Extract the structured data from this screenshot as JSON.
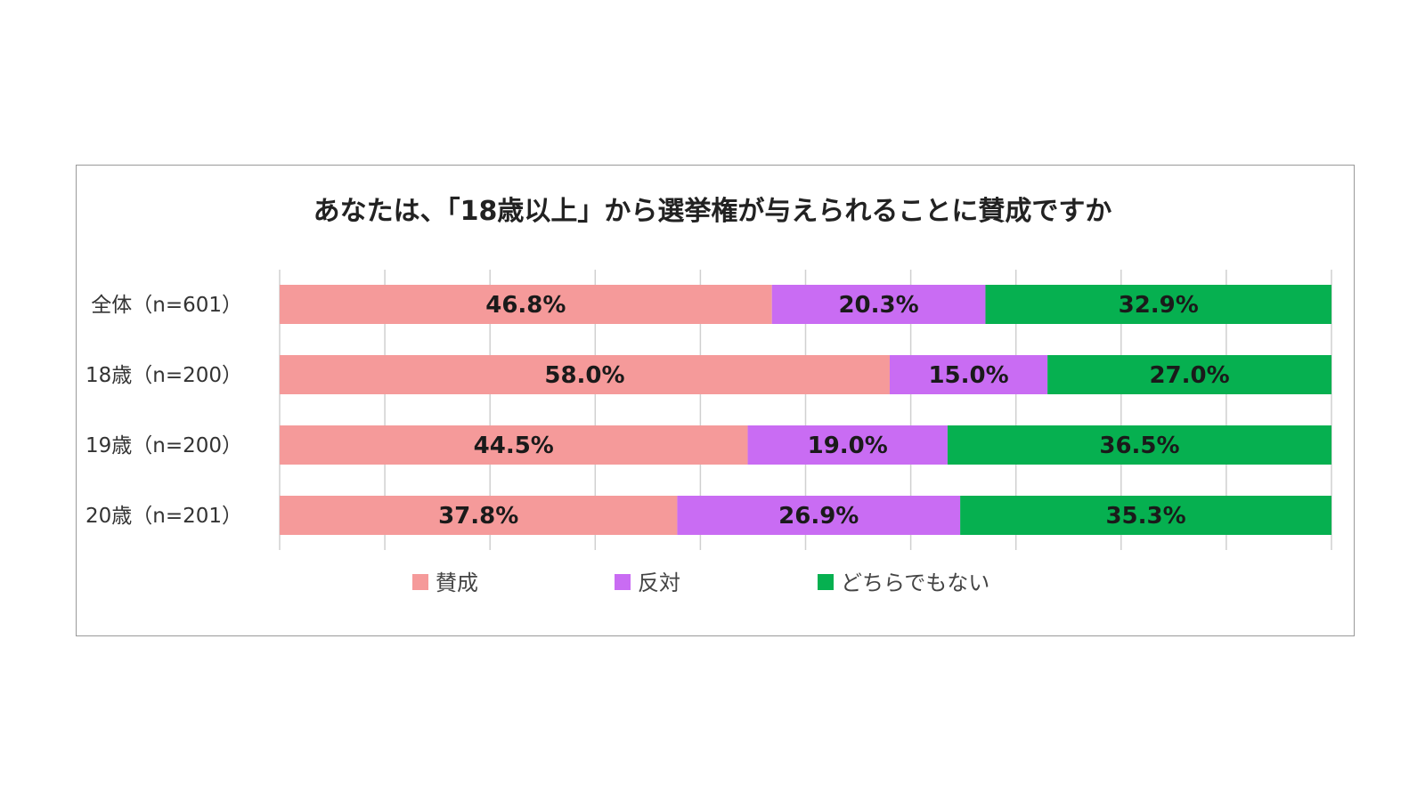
{
  "chart_data": {
    "type": "bar",
    "orientation": "horizontal",
    "stacked": true,
    "title": "あなたは、「18歳以上」から選挙権が与えられることに賛成ですか",
    "categories": [
      "全体（n=601）",
      "18歳（n=200）",
      "19歳（n=200）",
      "20歳（n=201）"
    ],
    "series": [
      {
        "name": "賛成",
        "color": "#f59a9a",
        "values": [
          46.8,
          58.0,
          44.5,
          37.8
        ],
        "labels": [
          "46.8%",
          "58.0%",
          "44.5%",
          "37.8%"
        ]
      },
      {
        "name": "反対",
        "color": "#c96cf3",
        "values": [
          20.3,
          15.0,
          19.0,
          26.9
        ],
        "labels": [
          "20.3%",
          "15.0%",
          "19.0%",
          "26.9%"
        ]
      },
      {
        "name": "どちらでもない",
        "color": "#06b050",
        "values": [
          32.9,
          27.0,
          36.5,
          35.3
        ],
        "labels": [
          "32.9%",
          "27.0%",
          "36.5%",
          "35.3%"
        ]
      }
    ],
    "xlim": [
      0,
      100
    ],
    "grid": true,
    "legend_position": "bottom"
  }
}
